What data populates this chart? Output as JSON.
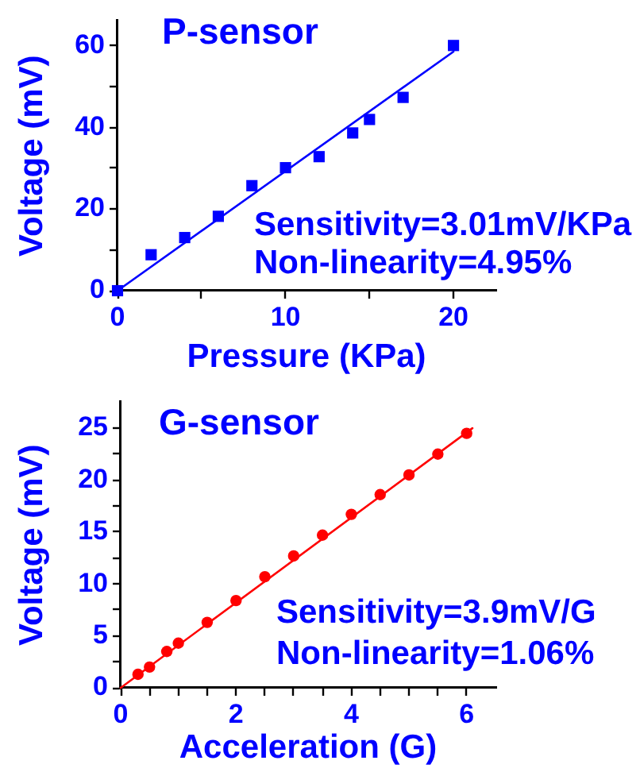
{
  "chart_data": [
    {
      "type": "scatter",
      "title": "P-sensor",
      "xlabel": "Pressure (KPa)",
      "ylabel": "Voltage (mV)",
      "series": [
        {
          "color": "#0000ff",
          "marker": "square",
          "x": [
            0,
            2,
            4,
            6,
            8,
            10,
            12,
            14,
            15,
            17,
            20
          ],
          "values": [
            0,
            8.8,
            13.0,
            18.2,
            25.7,
            30.1,
            32.8,
            38.6,
            41.9,
            47.3,
            60.0
          ]
        },
        {
          "type": "line",
          "color": "#0000ff",
          "marker": "none",
          "x": [
            0,
            20
          ],
          "values": [
            0,
            58.5
          ]
        }
      ],
      "xlim": [
        0,
        22.5
      ],
      "ylim": [
        0,
        66
      ],
      "xticks": [
        0,
        {
          "value": 5,
          "label": null
        },
        10,
        {
          "value": 15,
          "label": null
        },
        20
      ],
      "yticks": [
        0,
        {
          "value": 10,
          "label": null
        },
        20,
        {
          "value": 30,
          "label": null
        },
        40,
        {
          "value": 50,
          "label": null
        },
        60
      ],
      "annotations": [
        "Sensitivity=3.01mV/KPa",
        "Non-linearity=4.95%"
      ]
    },
    {
      "type": "scatter",
      "title": "G-sensor",
      "xlabel": "Acceleration (G)",
      "ylabel": "Voltage (mV)",
      "series": [
        {
          "color": "#ff0000",
          "marker": "circle",
          "x": [
            0.3,
            0.5,
            0.8,
            1,
            1.5,
            2,
            2.5,
            3,
            3.5,
            4,
            4.5,
            5,
            5.5,
            6
          ],
          "values": [
            1.3,
            2.0,
            3.5,
            4.3,
            6.3,
            8.4,
            10.7,
            12.7,
            14.7,
            16.7,
            18.6,
            20.5,
            22.5,
            24.5
          ]
        },
        {
          "type": "line",
          "color": "#ff0000",
          "marker": "none",
          "x": [
            0,
            6.1
          ],
          "values": [
            0,
            25.0
          ]
        }
      ],
      "xlim": [
        0,
        6.5
      ],
      "ylim": [
        0,
        27.5
      ],
      "xticks": [
        0,
        {
          "value": 0.5,
          "label": null
        },
        {
          "value": 1,
          "label": null
        },
        {
          "value": 1.5,
          "label": null
        },
        2,
        {
          "value": 2.5,
          "label": null
        },
        {
          "value": 3,
          "label": null
        },
        {
          "value": 3.5,
          "label": null
        },
        4,
        {
          "value": 4.5,
          "label": null
        },
        {
          "value": 5,
          "label": null
        },
        {
          "value": 5.5,
          "label": null
        },
        6
      ],
      "yticks": [
        0,
        {
          "value": 2.5,
          "label": null
        },
        5,
        {
          "value": 7.5,
          "label": null
        },
        10,
        {
          "value": 12.5,
          "label": null
        },
        15,
        {
          "value": 17.5,
          "label": null
        },
        20,
        {
          "value": 22.5,
          "label": null
        },
        25
      ],
      "annotations": [
        "Sensitivity=3.9mV/G",
        "Non-linearity=1.06%"
      ]
    }
  ]
}
